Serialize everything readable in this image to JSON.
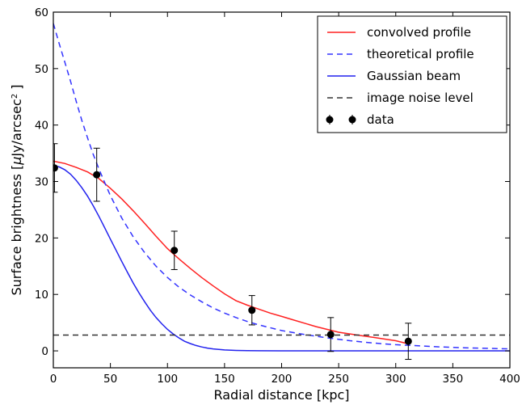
{
  "chart_data": {
    "type": "line",
    "xlabel": "Radial distance [kpc]",
    "ylabel_main": "Surface brightness [",
    "ylabel_mu": "μ",
    "ylabel_unit": "Jy/arcsec",
    "ylabel_exp": "2",
    "ylabel_close": " ]",
    "xlim": [
      0,
      400
    ],
    "ylim": [
      -3,
      60
    ],
    "x_ticks": [
      0,
      50,
      100,
      150,
      200,
      250,
      300,
      350,
      400
    ],
    "y_ticks": [
      0,
      10,
      20,
      30,
      40,
      50,
      60
    ],
    "x_tick_labels": [
      "0",
      "50",
      "100",
      "150",
      "200",
      "250",
      "300",
      "350",
      "400"
    ],
    "y_tick_labels": [
      "0",
      "10",
      "20",
      "30",
      "40",
      "50",
      "60"
    ],
    "grid": false,
    "legend_position": "top-right",
    "series": [
      {
        "name": "convolved profile",
        "style": "solid",
        "color": "#ff2020",
        "x": [
          0,
          10,
          20,
          30,
          40,
          50,
          60,
          70,
          80,
          90,
          100,
          110,
          120,
          130,
          140,
          150,
          160,
          170,
          180,
          190,
          200,
          210,
          220,
          230,
          240,
          250,
          260,
          270,
          280,
          290,
          300,
          310
        ],
        "y": [
          33.6,
          33.2,
          32.5,
          31.7,
          30.5,
          28.8,
          26.9,
          24.8,
          22.6,
          20.3,
          18.1,
          16.3,
          14.6,
          13.0,
          11.5,
          10.1,
          8.9,
          8.1,
          7.4,
          6.7,
          6.1,
          5.5,
          4.9,
          4.3,
          3.8,
          3.3,
          3.0,
          2.7,
          2.4,
          2.1,
          1.8,
          1.3
        ]
      },
      {
        "name": "theoretical profile",
        "style": "dashed",
        "color": "#3333ff",
        "x": [
          0,
          5,
          10,
          15,
          20,
          25,
          30,
          35,
          40,
          45,
          50,
          60,
          70,
          80,
          90,
          100,
          110,
          120,
          130,
          140,
          150,
          160,
          170,
          180,
          190,
          200,
          220,
          240,
          260,
          280,
          300,
          320,
          340,
          360,
          380,
          400
        ],
        "y": [
          58.0,
          54.5,
          51.2,
          47.8,
          44.2,
          40.8,
          37.7,
          34.8,
          32.2,
          29.8,
          27.5,
          23.5,
          20.2,
          17.4,
          15.0,
          13.0,
          11.3,
          9.9,
          8.7,
          7.6,
          6.7,
          5.9,
          5.2,
          4.6,
          4.1,
          3.6,
          2.9,
          2.3,
          1.8,
          1.4,
          1.1,
          0.9,
          0.7,
          0.55,
          0.45,
          0.35
        ]
      },
      {
        "name": "Gaussian beam",
        "style": "solid",
        "color": "#2222ee",
        "x": [
          0,
          5,
          10,
          15,
          20,
          25,
          30,
          35,
          40,
          45,
          50,
          55,
          60,
          65,
          70,
          75,
          80,
          85,
          90,
          95,
          100,
          105,
          110,
          115,
          120,
          125,
          130,
          135,
          140,
          145,
          150,
          160,
          170,
          180,
          200,
          230,
          260,
          300,
          350,
          400
        ],
        "y": [
          32.8,
          32.6,
          32.1,
          31.3,
          30.2,
          28.9,
          27.4,
          25.7,
          23.8,
          21.8,
          19.8,
          17.8,
          15.8,
          13.9,
          12.0,
          10.3,
          8.7,
          7.2,
          5.9,
          4.8,
          3.8,
          3.0,
          2.3,
          1.7,
          1.3,
          0.95,
          0.7,
          0.5,
          0.35,
          0.25,
          0.17,
          0.08,
          0.04,
          0.02,
          0.0,
          0.0,
          0.0,
          0.0,
          0.0,
          0.0
        ]
      },
      {
        "name": "image noise level",
        "style": "dashed",
        "color": "#333333",
        "x": [
          0,
          400
        ],
        "y": [
          2.8,
          2.8
        ]
      },
      {
        "name": "data",
        "style": "points",
        "color": "#000000",
        "x": [
          1,
          38,
          106,
          174,
          243,
          311
        ],
        "y": [
          32.4,
          31.2,
          17.8,
          7.2,
          2.9,
          1.7
        ],
        "yerr": [
          4.3,
          4.7,
          3.4,
          2.6,
          3.0,
          3.2
        ]
      }
    ]
  }
}
